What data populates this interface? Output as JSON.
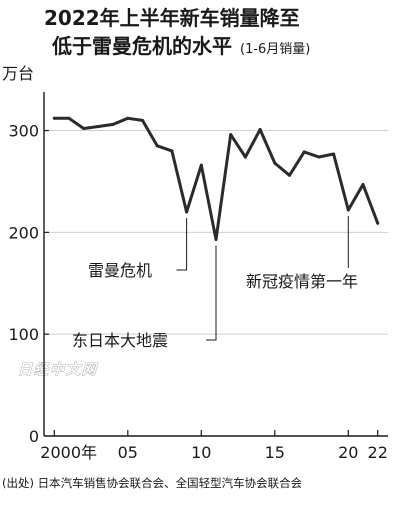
{
  "title": {
    "line1": "2022年上半年新车销量降至",
    "line2_main": "低于雷曼危机的水平",
    "line2_sub": "(1-6月销量)"
  },
  "watermark": "日经中文网",
  "source": "(出处) 日本汽车销售协会联合会、全国轻型汽车协会联合会",
  "colors": {
    "line": "#2b2b2b",
    "axis": "#1a1a1a",
    "grid": "#cfcfcf",
    "background": "#ffffff"
  },
  "chart_data": {
    "type": "line",
    "title": "2022年上半年新车销量降至低于雷曼危机的水平",
    "ylabel": "万台",
    "xlabel": "",
    "ylim": [
      0,
      330
    ],
    "xlim": [
      1999.3,
      2022.7
    ],
    "grid": "horizontal",
    "y_ticks": [
      {
        "value": 100,
        "label": "100"
      },
      {
        "value": 200,
        "label": "200"
      },
      {
        "value": 300,
        "label": "300"
      }
    ],
    "x_ticks": [
      {
        "value": 2000,
        "label": "2000年"
      },
      {
        "value": 2005,
        "label": "05"
      },
      {
        "value": 2010,
        "label": "10"
      },
      {
        "value": 2015,
        "label": "15"
      },
      {
        "value": 2020,
        "label": "20"
      },
      {
        "value": 2022,
        "label": "22"
      }
    ],
    "series": [
      {
        "x": [
          2000,
          2001,
          2002,
          2003,
          2004,
          2005,
          2006,
          2007,
          2008,
          2009,
          2010,
          2011,
          2012,
          2013,
          2014,
          2015,
          2016,
          2017,
          2018,
          2019,
          2020,
          2021,
          2022
        ],
        "values": [
          312,
          312,
          302,
          304,
          306,
          312,
          310,
          285,
          280,
          220,
          266,
          193,
          296,
          274,
          301,
          268,
          256,
          279,
          274,
          277,
          222,
          247,
          209
        ]
      }
    ],
    "annotations": [
      {
        "text": "雷曼危机",
        "x": 2009,
        "value": 220
      },
      {
        "text": "东日本大地震",
        "x": 2011,
        "value": 193
      },
      {
        "text": "新冠疫情第一年",
        "x": 2020,
        "value": 222
      }
    ]
  }
}
